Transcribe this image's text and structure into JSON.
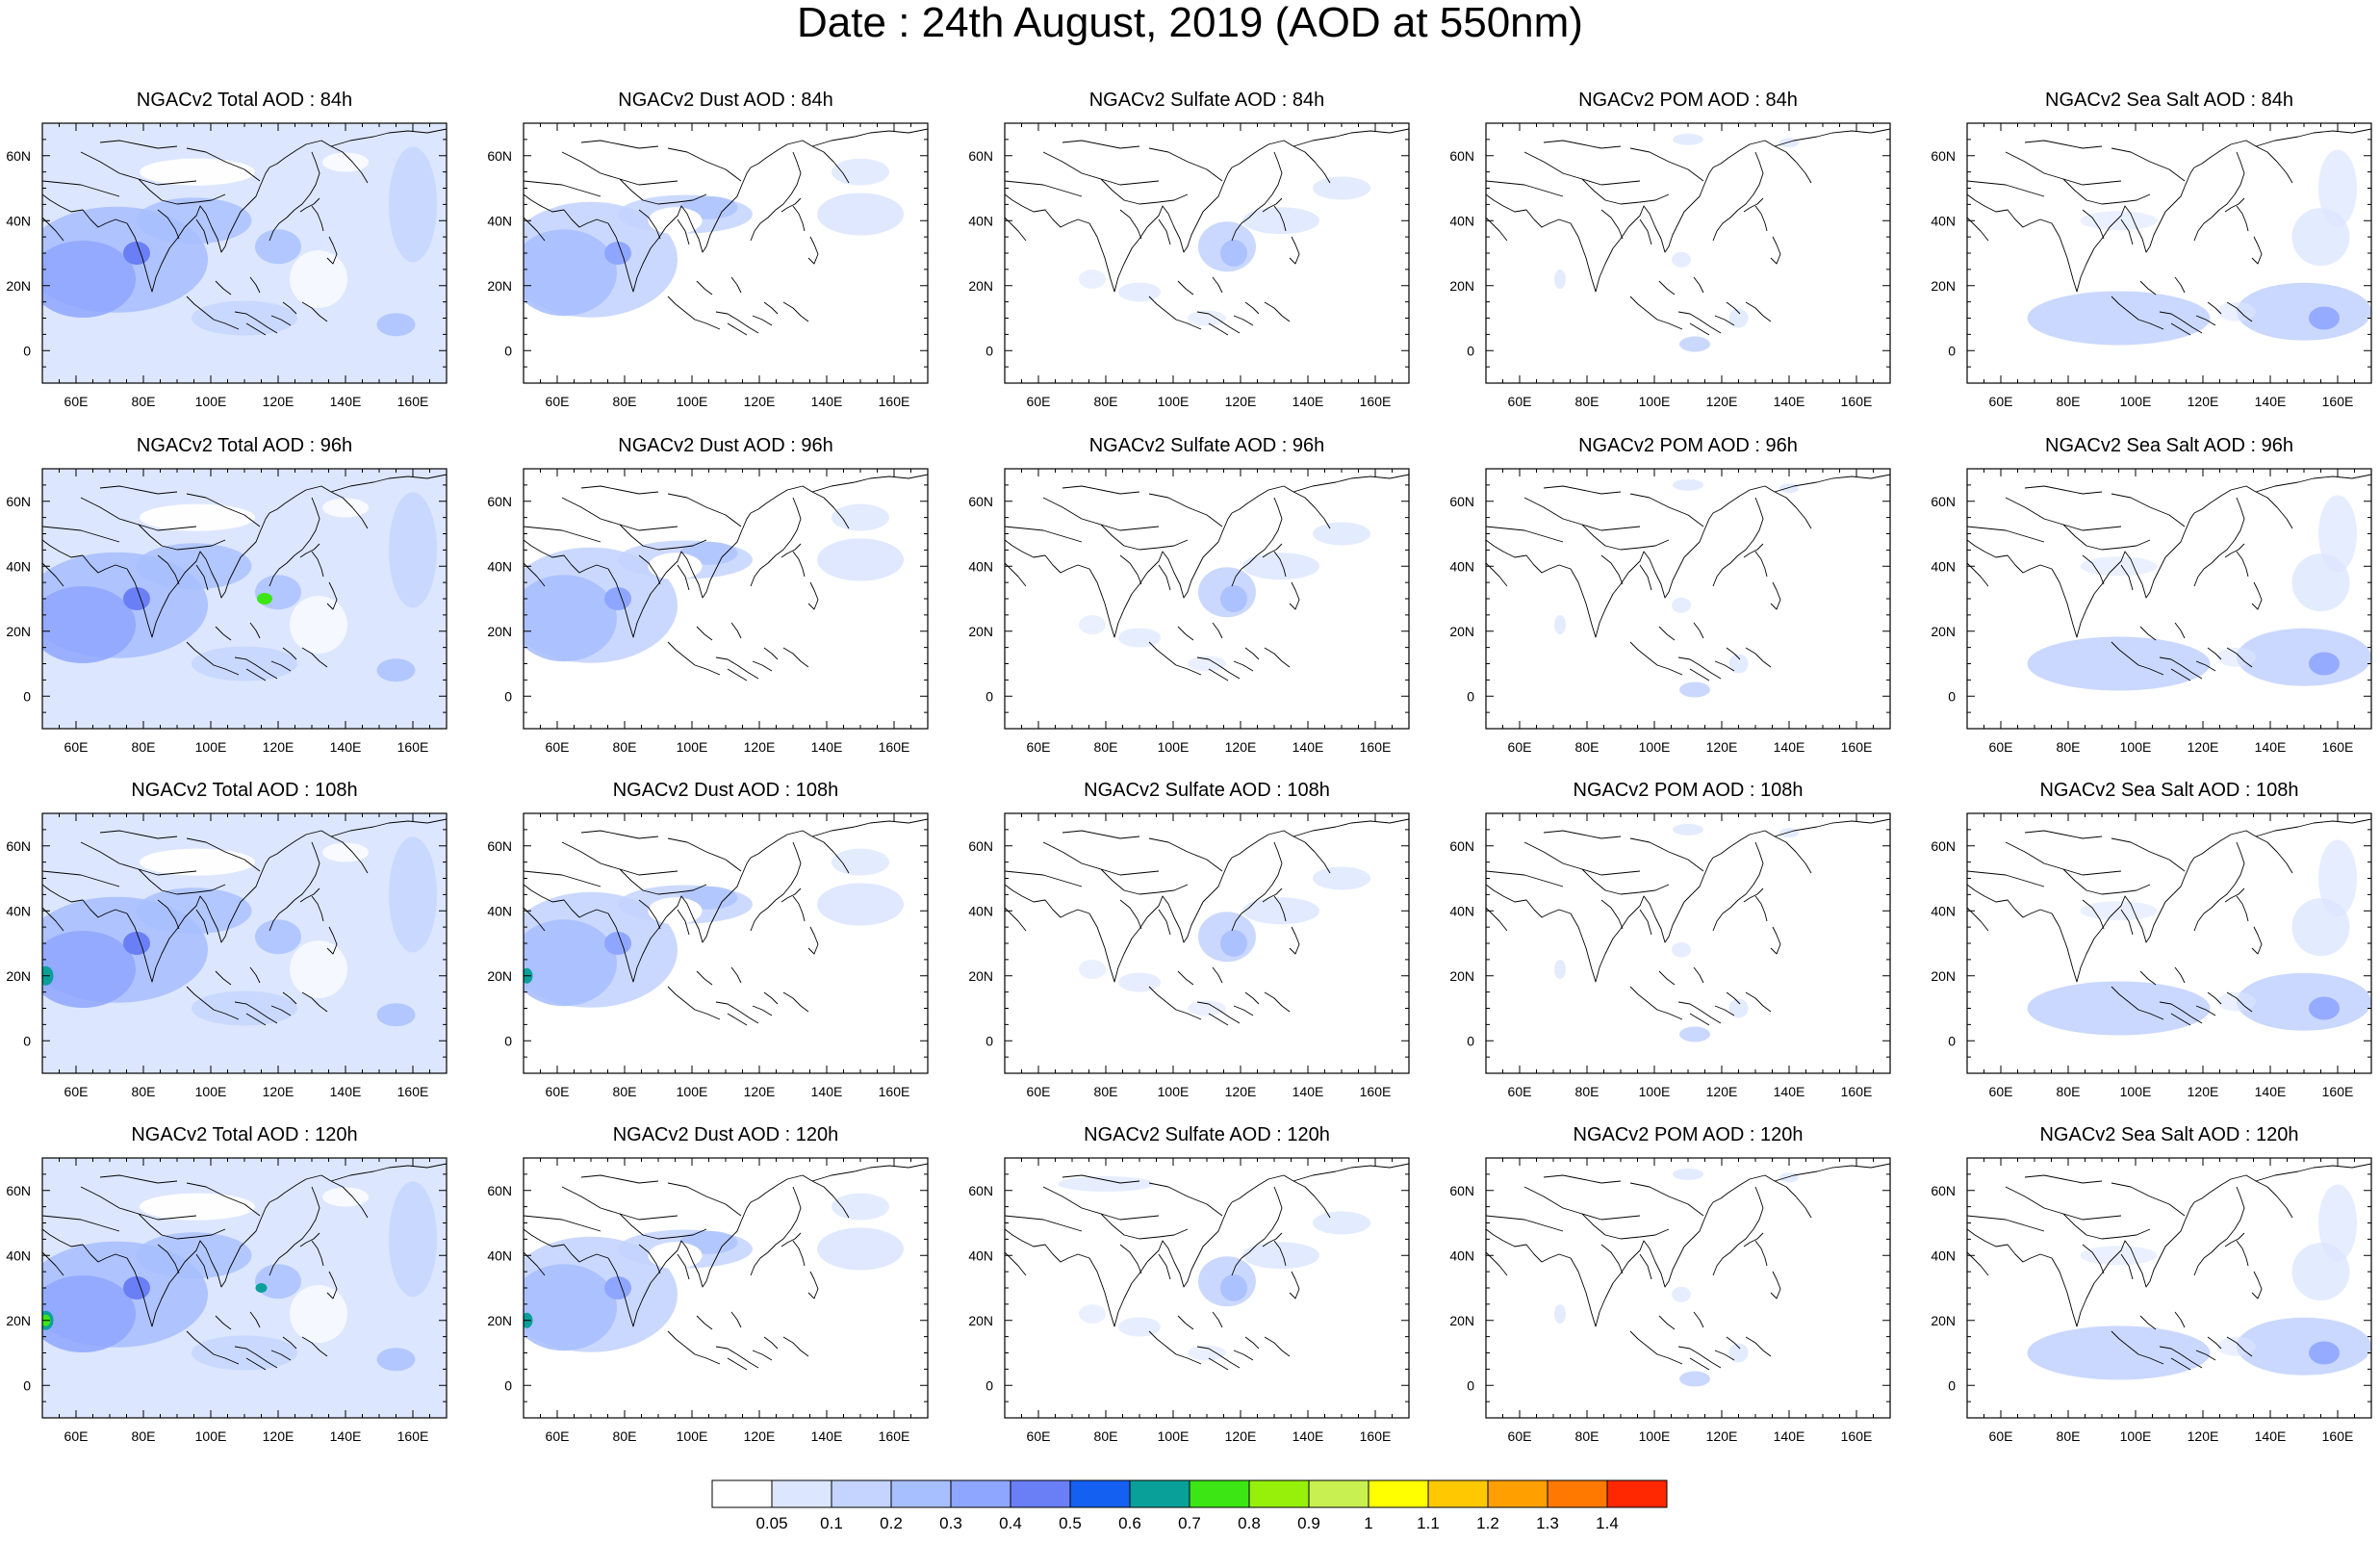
{
  "figure": {
    "title": "Date : 24th August, 2019 (AOD at 550nm)"
  },
  "map_axes": {
    "lon_labels": [
      "60E",
      "80E",
      "100E",
      "120E",
      "140E",
      "160E"
    ],
    "lat_labels": [
      "60N",
      "40N",
      "20N",
      "0"
    ],
    "region": "Asia",
    "lon_range": [
      50,
      170
    ],
    "lat_range": [
      -10,
      70
    ]
  },
  "panels": [
    {
      "title": "NGACv2 Total AOD : 84h",
      "species": "total",
      "forecast_hour": 84
    },
    {
      "title": "NGACv2 Dust AOD : 84h",
      "species": "dust",
      "forecast_hour": 84
    },
    {
      "title": "NGACv2 Sulfate AOD : 84h",
      "species": "sulfate",
      "forecast_hour": 84
    },
    {
      "title": "NGACv2 POM AOD : 84h",
      "species": "pom",
      "forecast_hour": 84
    },
    {
      "title": "NGACv2 Sea Salt AOD : 84h",
      "species": "seasalt",
      "forecast_hour": 84
    },
    {
      "title": "NGACv2 Total AOD : 96h",
      "species": "total",
      "forecast_hour": 96
    },
    {
      "title": "NGACv2 Dust AOD : 96h",
      "species": "dust",
      "forecast_hour": 96
    },
    {
      "title": "NGACv2 Sulfate AOD : 96h",
      "species": "sulfate",
      "forecast_hour": 96
    },
    {
      "title": "NGACv2 POM AOD : 96h",
      "species": "pom",
      "forecast_hour": 96
    },
    {
      "title": "NGACv2 Sea Salt AOD : 96h",
      "species": "seasalt",
      "forecast_hour": 96
    },
    {
      "title": "NGACv2 Total AOD : 108h",
      "species": "total",
      "forecast_hour": 108
    },
    {
      "title": "NGACv2 Dust AOD : 108h",
      "species": "dust",
      "forecast_hour": 108
    },
    {
      "title": "NGACv2 Sulfate AOD : 108h",
      "species": "sulfate",
      "forecast_hour": 108
    },
    {
      "title": "NGACv2 POM AOD : 108h",
      "species": "pom",
      "forecast_hour": 108
    },
    {
      "title": "NGACv2 Sea Salt AOD : 108h",
      "species": "seasalt",
      "forecast_hour": 108
    },
    {
      "title": "NGACv2 Total AOD : 120h",
      "species": "total",
      "forecast_hour": 120
    },
    {
      "title": "NGACv2 Dust AOD : 120h",
      "species": "dust",
      "forecast_hour": 120
    },
    {
      "title": "NGACv2 Sulfate AOD : 120h",
      "species": "sulfate",
      "forecast_hour": 120
    },
    {
      "title": "NGACv2 POM AOD : 120h",
      "species": "pom",
      "forecast_hour": 120
    },
    {
      "title": "NGACv2 Sea Salt  AOD : 120h",
      "species": "seasalt",
      "forecast_hour": 120
    }
  ],
  "colorbar": {
    "labels": [
      "0.05",
      "0.1",
      "0.2",
      "0.3",
      "0.4",
      "0.5",
      "0.6",
      "0.7",
      "0.8",
      "0.9",
      "1",
      "1.1",
      "1.2",
      "1.3",
      "1.4"
    ],
    "colors": [
      "#ffffff",
      "#dce6ff",
      "#c4d4ff",
      "#a8bfff",
      "#8ea6ff",
      "#6a7ef5",
      "#1460f0",
      "#0aa09a",
      "#3ce614",
      "#96f00a",
      "#c8f050",
      "#ffff00",
      "#ffc800",
      "#ffa000",
      "#ff7800",
      "#ff2800"
    ]
  }
}
